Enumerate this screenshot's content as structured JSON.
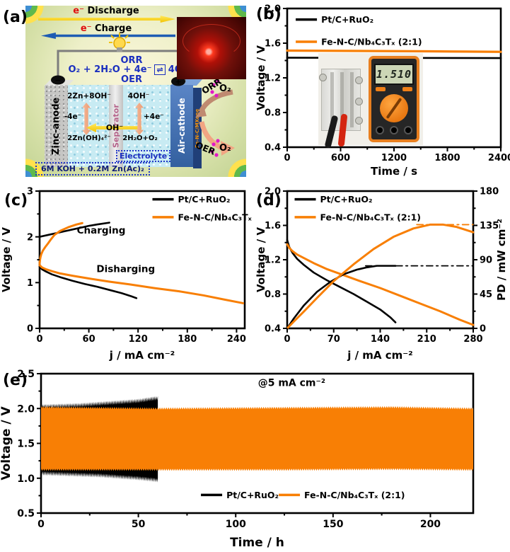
{
  "panels": {
    "a": "(a)",
    "b": "(b)",
    "c": "(c)",
    "d": "(d)",
    "e": "(e)"
  },
  "panel_a": {
    "discharge": {
      "e": "e⁻",
      "word": "Discharge"
    },
    "charge": {
      "e": "e⁻",
      "word": "Charge"
    },
    "orr": "ORR",
    "oer": "OER",
    "reaction_left": "O₂ + 2H₂O + 4e⁻",
    "reaction_eq": "⇌",
    "reaction_right": "4OH⁻",
    "minus": "−",
    "plus": "+",
    "anode": "Zinc-anode",
    "separator": "Separator",
    "cathode": "Air-cathode",
    "cathode_side": "Fe-N-C/MXene",
    "rx_left_top": "2Zn+8OH⁻",
    "rx_left_mid": "-4e⁻",
    "rx_left_bottom": "2Zn(OH)₄²⁻",
    "oh": "OH⁻",
    "rx_right_top": "4OH⁻",
    "rx_right_mid": "+4e⁻",
    "rx_right_bottom": "2H₂O+O₂",
    "electrolyte": "Electrolyte",
    "formula": "6M KOH + 0.2M Zn(Ac)₂",
    "orr_arrow_label": "ORR",
    "oer_arrow_label": "OER",
    "o2_top": "O₂",
    "o2_bottom": "O₂"
  },
  "panel_b_inset": {
    "display": "1.510"
  },
  "colors": {
    "black": "#000000",
    "orange": "#f87f05"
  },
  "chart_data": [
    {
      "id": "b",
      "type": "line",
      "xlabel": "Time / s",
      "ylabel": "Voltage / V",
      "xlim": [
        0,
        2400
      ],
      "ylim": [
        0.4,
        2.0
      ],
      "xticks": [
        0,
        600,
        1200,
        1800,
        2400
      ],
      "yticks": [
        0.4,
        0.8,
        1.2,
        1.6,
        2.0
      ],
      "xdec": 0,
      "ydec": 1,
      "legend": [
        {
          "label": "Pt/C+RuO₂",
          "color": "#000000",
          "fx": 0.04,
          "fy": 0.08
        },
        {
          "label": "Fe-N-C/Nb₄C₃Tₓ (2:1)",
          "color": "#f87f05",
          "fx": 0.04,
          "fy": 0.24
        }
      ],
      "series": [
        {
          "name": "Pt/C+RuO₂",
          "color": "#000000",
          "w": 2.6,
          "x": [
            0,
            2400
          ],
          "y": [
            1.432,
            1.428
          ]
        },
        {
          "name": "Fe-N-C/Nb₄C₃Tₓ (2:1)",
          "color": "#f87f05",
          "w": 3.2,
          "x": [
            0,
            400,
            800,
            1200,
            1600,
            2000,
            2400
          ],
          "y": [
            1.514,
            1.512,
            1.51,
            1.508,
            1.506,
            1.503,
            1.5
          ]
        }
      ],
      "annotations": []
    },
    {
      "id": "c",
      "type": "line",
      "xlabel": "j / mA cm⁻²",
      "ylabel": "Voltage / V",
      "xlim": [
        0,
        250
      ],
      "ylim": [
        0,
        3
      ],
      "xticks": [
        0,
        60,
        120,
        180,
        240
      ],
      "yticks": [
        0,
        1,
        2,
        3
      ],
      "xdec": 0,
      "ydec": 0,
      "legend": [
        {
          "label": "Pt/C+RuO₂",
          "color": "#000000",
          "fx": 0.55,
          "fy": 0.06
        },
        {
          "label": "Fe-N-C/Nb₄C₃Tₓ (2:1)",
          "color": "#f87f05",
          "fx": 0.55,
          "fy": 0.19
        }
      ],
      "series": [
        {
          "name": "Pt/C+RuO₂ charge",
          "color": "#000000",
          "w": 2.6,
          "x": [
            0,
            10,
            20,
            30,
            40,
            50,
            60,
            70,
            85
          ],
          "y": [
            2.0,
            2.04,
            2.08,
            2.12,
            2.16,
            2.2,
            2.24,
            2.27,
            2.31
          ]
        },
        {
          "name": "Fe-N-C/Nb₄C₃Tₓ charge",
          "color": "#f87f05",
          "w": 3.0,
          "x": [
            0,
            0.5,
            1,
            2,
            4,
            7,
            10,
            14,
            18,
            25,
            35,
            45,
            52
          ],
          "y": [
            1.42,
            1.5,
            1.55,
            1.62,
            1.7,
            1.78,
            1.85,
            1.95,
            2.04,
            2.13,
            2.21,
            2.27,
            2.3
          ]
        },
        {
          "name": "Pt/C+RuO₂ discharge",
          "color": "#000000",
          "w": 2.6,
          "x": [
            0,
            3,
            8,
            15,
            25,
            40,
            55,
            70,
            85,
            100,
            112,
            118
          ],
          "y": [
            1.35,
            1.29,
            1.24,
            1.18,
            1.12,
            1.04,
            0.97,
            0.91,
            0.84,
            0.77,
            0.7,
            0.66
          ]
        },
        {
          "name": "Fe-N-C/Nb₄C₃Tₓ discharge",
          "color": "#f87f05",
          "w": 3.0,
          "x": [
            0,
            3,
            8,
            15,
            25,
            40,
            60,
            85,
            110,
            140,
            170,
            200,
            225,
            248
          ],
          "y": [
            1.38,
            1.33,
            1.29,
            1.25,
            1.2,
            1.15,
            1.09,
            1.02,
            0.96,
            0.88,
            0.81,
            0.72,
            0.63,
            0.55
          ]
        }
      ],
      "annotations": [
        {
          "text": "Charging",
          "fx": 0.3,
          "fy": 0.31,
          "size": 13.5
        },
        {
          "text": "Disharging",
          "fx": 0.42,
          "fy": 0.59,
          "size": 13.5
        }
      ]
    },
    {
      "id": "d",
      "type": "line",
      "xlabel": "j / mA cm⁻²",
      "ylabel": "Voltage / V",
      "y2label": "PD / mW cm⁻²",
      "xlim": [
        0,
        280
      ],
      "ylim": [
        0.4,
        2.0
      ],
      "y2lim": [
        0,
        180
      ],
      "xticks": [
        0,
        70,
        140,
        210,
        280
      ],
      "yticks": [
        0.4,
        0.8,
        1.2,
        1.6,
        2.0
      ],
      "y2ticks": [
        0,
        45,
        90,
        135,
        180
      ],
      "xdec": 0,
      "ydec": 1,
      "y2dec": 0,
      "legend": [
        {
          "label": "Pt/C+RuO₂",
          "color": "#000000",
          "fx": 0.04,
          "fy": 0.06
        },
        {
          "label": "Fe-N-C/Nb₄C₃Tₓ (2:1)",
          "color": "#f87f05",
          "fx": 0.04,
          "fy": 0.19
        }
      ],
      "series": [
        {
          "name": "Pt/C+RuO₂ voltage",
          "color": "#000000",
          "w": 2.6,
          "x": [
            0,
            3,
            8,
            15,
            25,
            40,
            60,
            80,
            100,
            120,
            140,
            155,
            163
          ],
          "y": [
            1.43,
            1.35,
            1.28,
            1.21,
            1.14,
            1.05,
            0.96,
            0.88,
            0.8,
            0.71,
            0.62,
            0.53,
            0.47
          ]
        },
        {
          "name": "Fe-N-C/Nb₄C₃Tₓ voltage",
          "color": "#f87f05",
          "w": 3.0,
          "x": [
            0,
            3,
            8,
            15,
            25,
            40,
            60,
            85,
            110,
            140,
            170,
            200,
            230,
            260,
            280
          ],
          "y": [
            1.38,
            1.34,
            1.3,
            1.26,
            1.22,
            1.16,
            1.09,
            1.02,
            0.95,
            0.87,
            0.78,
            0.69,
            0.6,
            0.5,
            0.44
          ]
        },
        {
          "name": "Pt/C+RuO₂ power density",
          "color": "#000000",
          "w": 2.6,
          "axis": "y2",
          "x": [
            0,
            10,
            25,
            45,
            65,
            85,
            105,
            120,
            135,
            150,
            163
          ],
          "y": [
            0,
            13,
            30,
            48,
            61,
            71,
            77,
            80,
            82,
            82,
            82
          ]
        },
        {
          "name": "Pt/C+RuO₂ peak PD",
          "color": "#000000",
          "w": 1.8,
          "axis": "y2",
          "style": "dashdot",
          "x": [
            118,
            280
          ],
          "y": [
            82,
            82
          ]
        },
        {
          "name": "Fe-N-C/Nb₄C₃Tₓ power density",
          "color": "#f87f05",
          "w": 3.0,
          "axis": "y2",
          "x": [
            0,
            10,
            25,
            45,
            70,
            100,
            130,
            160,
            190,
            215,
            235,
            255,
            280
          ],
          "y": [
            0,
            9,
            22,
            40,
            62,
            84,
            104,
            120,
            131,
            136,
            136,
            133,
            126
          ]
        },
        {
          "name": "Fe-N-C/Nb₄C₃Tₓ peak PD",
          "color": "#f87f05",
          "w": 1.8,
          "axis": "y2",
          "style": "dashdot",
          "x": [
            195,
            280
          ],
          "y": [
            136,
            136
          ]
        }
      ],
      "annotations": []
    },
    {
      "id": "e",
      "type": "area",
      "xlabel": "Time / h",
      "ylabel": "Voltage / V",
      "xlim": [
        0,
        222
      ],
      "ylim": [
        0.5,
        2.5
      ],
      "xticks": [
        0,
        50,
        100,
        150,
        200
      ],
      "yticks": [
        0.5,
        1.0,
        1.5,
        2.0,
        2.5
      ],
      "xdec": 0,
      "ydec": 1,
      "tick_size": 14,
      "label_size": 17,
      "legend": [
        {
          "label": "Pt/C+RuO₂",
          "color": "#000000",
          "fx": 0.37,
          "fy": 0.87
        },
        {
          "label": "Fe-N-C/Nb₄C₃Tₓ (2:1)",
          "color": "#f87f05",
          "fx": 0.55,
          "fy": 0.87
        }
      ],
      "series": [
        {
          "name": "Pt/C+RuO₂ cycling band",
          "type": "band",
          "fill": "#000000",
          "amp": 3,
          "n": 150,
          "x": [
            0,
            10,
            20,
            30,
            40,
            50,
            57,
            60
          ],
          "upper": [
            2.03,
            2.04,
            2.05,
            2.07,
            2.09,
            2.11,
            2.14,
            2.15
          ],
          "lower": [
            1.07,
            1.06,
            1.05,
            1.04,
            1.02,
            1.0,
            0.98,
            0.97
          ]
        },
        {
          "name": "Fe-N-C/Nb₄C₃Tₓ cycling band",
          "type": "band",
          "fill": "#f87f05",
          "amp": 1.5,
          "n": 400,
          "x": [
            0,
            60,
            120,
            180,
            222
          ],
          "upper": [
            2.02,
            2.0,
            2.01,
            2.02,
            2.0
          ],
          "lower": [
            1.12,
            1.12,
            1.12,
            1.13,
            1.12
          ]
        }
      ],
      "annotations": [
        {
          "text": "@5 mA cm⁻²",
          "fx": 0.58,
          "fy": 0.09,
          "size": 14
        }
      ]
    }
  ]
}
